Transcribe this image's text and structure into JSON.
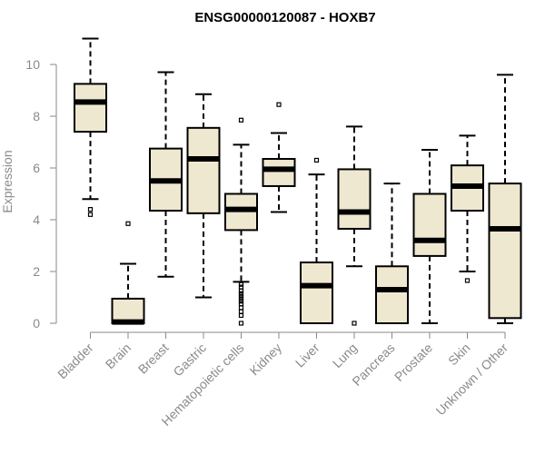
{
  "chart_data": {
    "type": "boxplot",
    "title": "ENSG00000120087 - HOXB7",
    "xlabel": "",
    "ylabel": "Expression",
    "ylim": [
      0,
      11
    ],
    "yticks": [
      0,
      2,
      4,
      6,
      8,
      10
    ],
    "grid": false,
    "legend": "none",
    "box_fill": "#efe8d0",
    "box_stroke": "#000000",
    "categories": [
      "Bladder",
      "Brain",
      "Breast",
      "Gastric",
      "Hematopoietic cells",
      "Kidney",
      "Liver",
      "Lung",
      "Pancreas",
      "Prostate",
      "Skin",
      "Unknown / Other"
    ],
    "boxes": [
      {
        "category": "Bladder",
        "whisker_low": 4.8,
        "q1": 7.4,
        "median": 8.55,
        "q3": 9.25,
        "whisker_high": 11.0,
        "outliers": [
          4.2,
          4.4
        ]
      },
      {
        "category": "Brain",
        "whisker_low": 0.0,
        "q1": 0.0,
        "median": 0.05,
        "q3": 0.95,
        "whisker_high": 2.3,
        "outliers": [
          3.85
        ]
      },
      {
        "category": "Breast",
        "whisker_low": 1.8,
        "q1": 4.35,
        "median": 5.5,
        "q3": 6.75,
        "whisker_high": 9.7,
        "outliers": []
      },
      {
        "category": "Gastric",
        "whisker_low": 1.0,
        "q1": 4.25,
        "median": 6.35,
        "q3": 7.55,
        "whisker_high": 8.85,
        "outliers": []
      },
      {
        "category": "Hematopoietic cells",
        "whisker_low": 1.6,
        "q1": 3.6,
        "median": 4.4,
        "q3": 5.0,
        "whisker_high": 6.9,
        "outliers": [
          7.85,
          1.5,
          1.4,
          1.25,
          1.15,
          1.05,
          0.95,
          0.85,
          0.75,
          0.6,
          0.45,
          0.3,
          0.0
        ]
      },
      {
        "category": "Kidney",
        "whisker_low": 4.3,
        "q1": 5.3,
        "median": 5.95,
        "q3": 6.35,
        "whisker_high": 7.35,
        "outliers": [
          8.45
        ]
      },
      {
        "category": "Liver",
        "whisker_low": 0.0,
        "q1": 0.0,
        "median": 1.45,
        "q3": 2.35,
        "whisker_high": 5.75,
        "outliers": [
          6.3
        ]
      },
      {
        "category": "Lung",
        "whisker_low": 2.2,
        "q1": 3.65,
        "median": 4.3,
        "q3": 5.95,
        "whisker_high": 7.6,
        "outliers": [
          0.0
        ]
      },
      {
        "category": "Pancreas",
        "whisker_low": 0.0,
        "q1": 0.0,
        "median": 1.3,
        "q3": 2.2,
        "whisker_high": 5.4,
        "outliers": []
      },
      {
        "category": "Prostate",
        "whisker_low": 0.0,
        "q1": 2.6,
        "median": 3.2,
        "q3": 5.0,
        "whisker_high": 6.7,
        "outliers": []
      },
      {
        "category": "Skin",
        "whisker_low": 2.0,
        "q1": 4.35,
        "median": 5.3,
        "q3": 6.1,
        "whisker_high": 7.25,
        "outliers": [
          1.65
        ]
      },
      {
        "category": "Unknown / Other",
        "whisker_low": 0.0,
        "q1": 0.2,
        "median": 3.65,
        "q3": 5.4,
        "whisker_high": 9.6,
        "outliers": []
      }
    ]
  }
}
